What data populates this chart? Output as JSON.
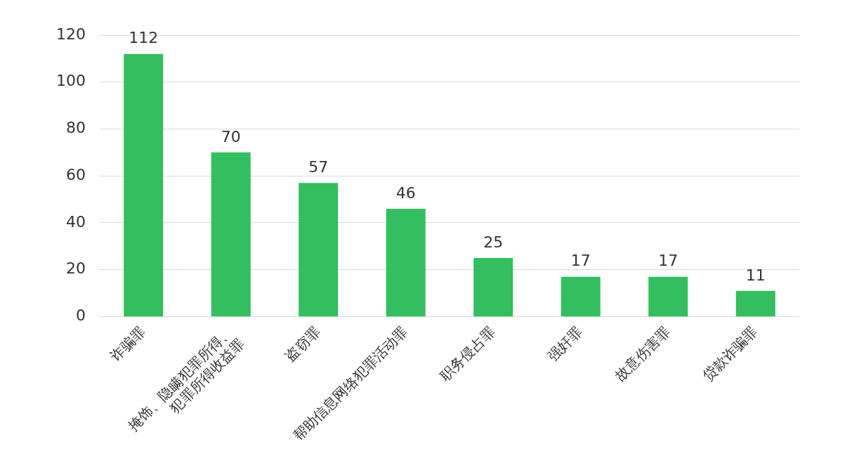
{
  "chart_data": {
    "type": "bar",
    "categories": [
      "诈骗罪",
      "掩饰、隐瞒犯罪所得、\n犯罪所得收益罪",
      "盗窃罪",
      "帮助信息网络犯罪活动罪",
      "职务侵占罪",
      "强奸罪",
      "故意伤害罪",
      "贷款诈骗罪"
    ],
    "values": [
      112,
      70,
      57,
      46,
      25,
      17,
      17,
      11
    ],
    "color": "#33be5f",
    "ylim": [
      0,
      120
    ],
    "yticks": [
      0,
      20,
      40,
      60,
      80,
      100,
      120
    ],
    "grid": "y",
    "data_labels": true,
    "legend": false
  }
}
